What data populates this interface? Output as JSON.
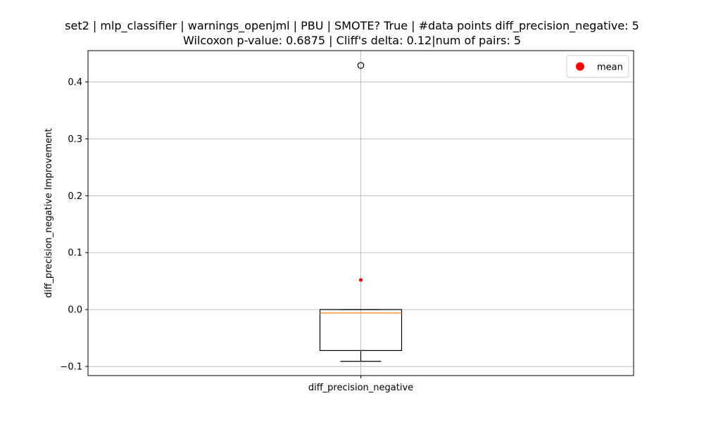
{
  "chart_data": {
    "type": "box",
    "title_line1": "set2 | mlp_classifier | warnings_openjml | PBU | SMOTE? True | #data points diff_precision_negative: 5",
    "title_line2": "Wilcoxon p-value: 0.6875 | Cliff's delta: 0.12|num of pairs: 5",
    "xlabel": "",
    "ylabel": "diff_precision_negative Improvement",
    "categories": [
      "diff_precision_negative"
    ],
    "ylim": [
      -0.116,
      0.455
    ],
    "yticks": [
      -0.1,
      0.0,
      0.1,
      0.2,
      0.3,
      0.4
    ],
    "ytick_labels": [
      "−0.1",
      "0.0",
      "0.1",
      "0.2",
      "0.3",
      "0.4"
    ],
    "grid": true,
    "legend": {
      "placement": "top-right",
      "entries": [
        {
          "label": "mean",
          "color": "#ff0000",
          "marker": "circle"
        }
      ]
    },
    "boxes": [
      {
        "name": "diff_precision_negative",
        "whisker_low": -0.091,
        "q1": -0.072,
        "median": -0.006,
        "q3": 0.0,
        "whisker_high": 0.0,
        "mean": 0.052,
        "outliers": [
          0.429
        ]
      }
    ],
    "colors": {
      "box": "#000000",
      "median": "#ff7f0e",
      "mean": "#ff0000",
      "grid": "#b0b0b0"
    }
  }
}
